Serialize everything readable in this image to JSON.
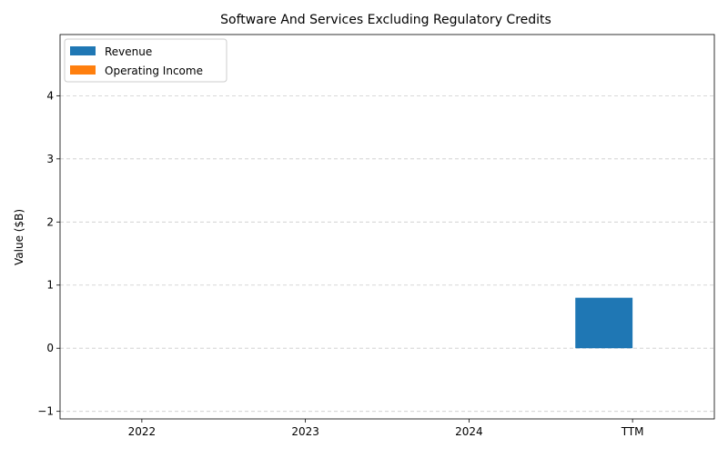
{
  "chart_data": {
    "type": "bar",
    "title": "Software And Services Excluding Regulatory Credits",
    "xlabel": "",
    "ylabel": "Value ($B)",
    "categories": [
      "2022",
      "2023",
      "2024",
      "TTM"
    ],
    "series": [
      {
        "name": "Revenue",
        "color": "#1f77b4",
        "values": [
          0,
          0,
          0,
          0.8
        ]
      },
      {
        "name": "Operating Income",
        "color": "#ff7f0e",
        "values": [
          0,
          0,
          0,
          0
        ]
      }
    ],
    "ylim": [
      -1.12,
      4.97
    ],
    "yticks": [
      -1,
      0,
      1,
      2,
      3,
      4
    ],
    "ytick_labels": [
      "−1",
      "0",
      "1",
      "2",
      "3",
      "4"
    ],
    "grid": "y-dashed",
    "legend_position": "top-left"
  }
}
